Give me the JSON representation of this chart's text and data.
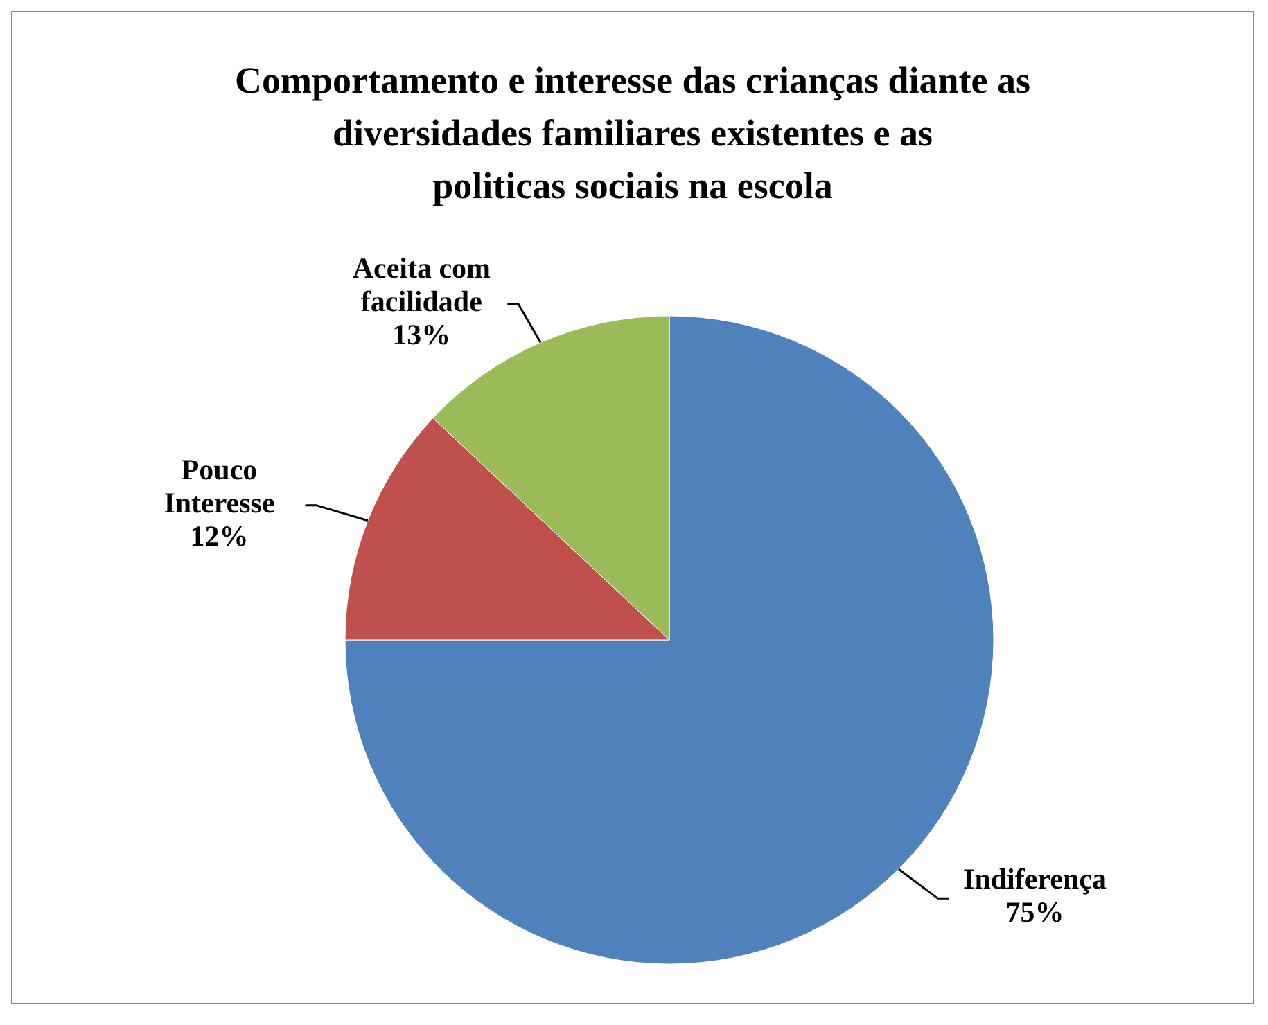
{
  "chart_data": {
    "type": "pie",
    "title": "Comportamento e interesse das crianças diante as diversidades familiares existentes e as politicas sociais na escola",
    "categories": [
      "Indiferença",
      "Pouco Interesse",
      "Aceita com facilidade"
    ],
    "values": [
      75,
      12,
      13
    ],
    "value_labels": [
      "75%",
      "12%",
      "13%"
    ],
    "colors": [
      "#4f81bd",
      "#c0504d",
      "#9bbb59"
    ]
  }
}
